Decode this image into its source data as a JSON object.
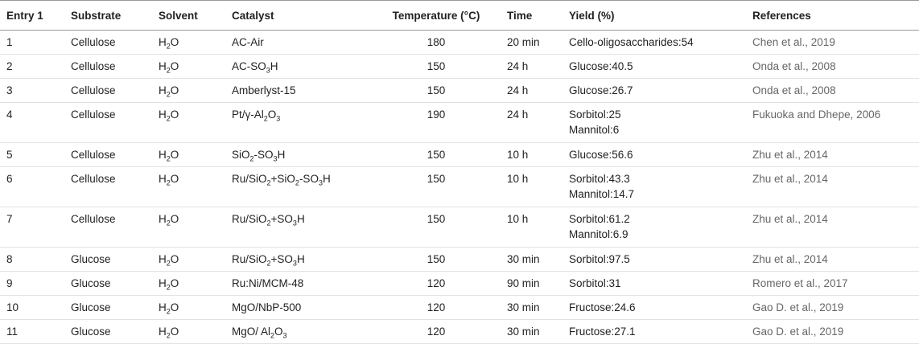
{
  "table": {
    "header": [
      "Entry 1",
      "Substrate",
      "Solvent",
      "Catalyst",
      "Temperature (°C)",
      "Time",
      "Yield (%)",
      "References"
    ],
    "rows": [
      [
        "1",
        "Cellulose",
        "H2O",
        "AC-Air",
        "180",
        "20 min",
        [
          "Cello-oligosaccharides:54"
        ],
        "Chen et al., 2019"
      ],
      [
        "2",
        "Cellulose",
        "H2O",
        "AC-SO3H",
        "150",
        "24 h",
        [
          "Glucose:40.5"
        ],
        "Onda et al., 2008"
      ],
      [
        "3",
        "Cellulose",
        "H2O",
        "Amberlyst-15",
        "150",
        "24 h",
        [
          "Glucose:26.7"
        ],
        "Onda et al., 2008"
      ],
      [
        "4",
        "Cellulose",
        "H2O",
        "Pt/γ-Al2O3",
        "190",
        "24 h",
        [
          "Sorbitol:25",
          "Mannitol:6"
        ],
        "Fukuoka and Dhepe, 2006"
      ],
      [
        "5",
        "Cellulose",
        "H2O",
        "SiO2-SO3H",
        "150",
        "10 h",
        [
          "Glucose:56.6"
        ],
        "Zhu et al., 2014"
      ],
      [
        "6",
        "Cellulose",
        "H2O",
        "Ru/SiO2+SiO2-SO3H",
        "150",
        "10 h",
        [
          "Sorbitol:43.3",
          "Mannitol:14.7"
        ],
        "Zhu et al., 2014"
      ],
      [
        "7",
        "Cellulose",
        "H2O",
        "Ru/SiO2+SO3H",
        "150",
        "10 h",
        [
          "Sorbitol:61.2",
          "Mannitol:6.9"
        ],
        "Zhu et al., 2014"
      ],
      [
        "8",
        "Glucose",
        "H2O",
        "Ru/SiO2+SO3H",
        "150",
        "30 min",
        [
          "Sorbitol:97.5"
        ],
        "Zhu et al., 2014"
      ],
      [
        "9",
        "Glucose",
        "H2O",
        "Ru:Ni/MCM-48",
        "120",
        "90 min",
        [
          "Sorbitol:31"
        ],
        "Romero et al., 2017"
      ],
      [
        "10",
        "Glucose",
        "H2O",
        "MgO/NbP-500",
        "120",
        "30 min",
        [
          "Fructose:24.6"
        ],
        "Gao D. et al., 2019"
      ],
      [
        "11",
        "Glucose",
        "H2O",
        "MgO/ Al2O3",
        "120",
        "30 min",
        [
          "Fructose:27.1"
        ],
        "Gao D. et al., 2019"
      ]
    ]
  }
}
